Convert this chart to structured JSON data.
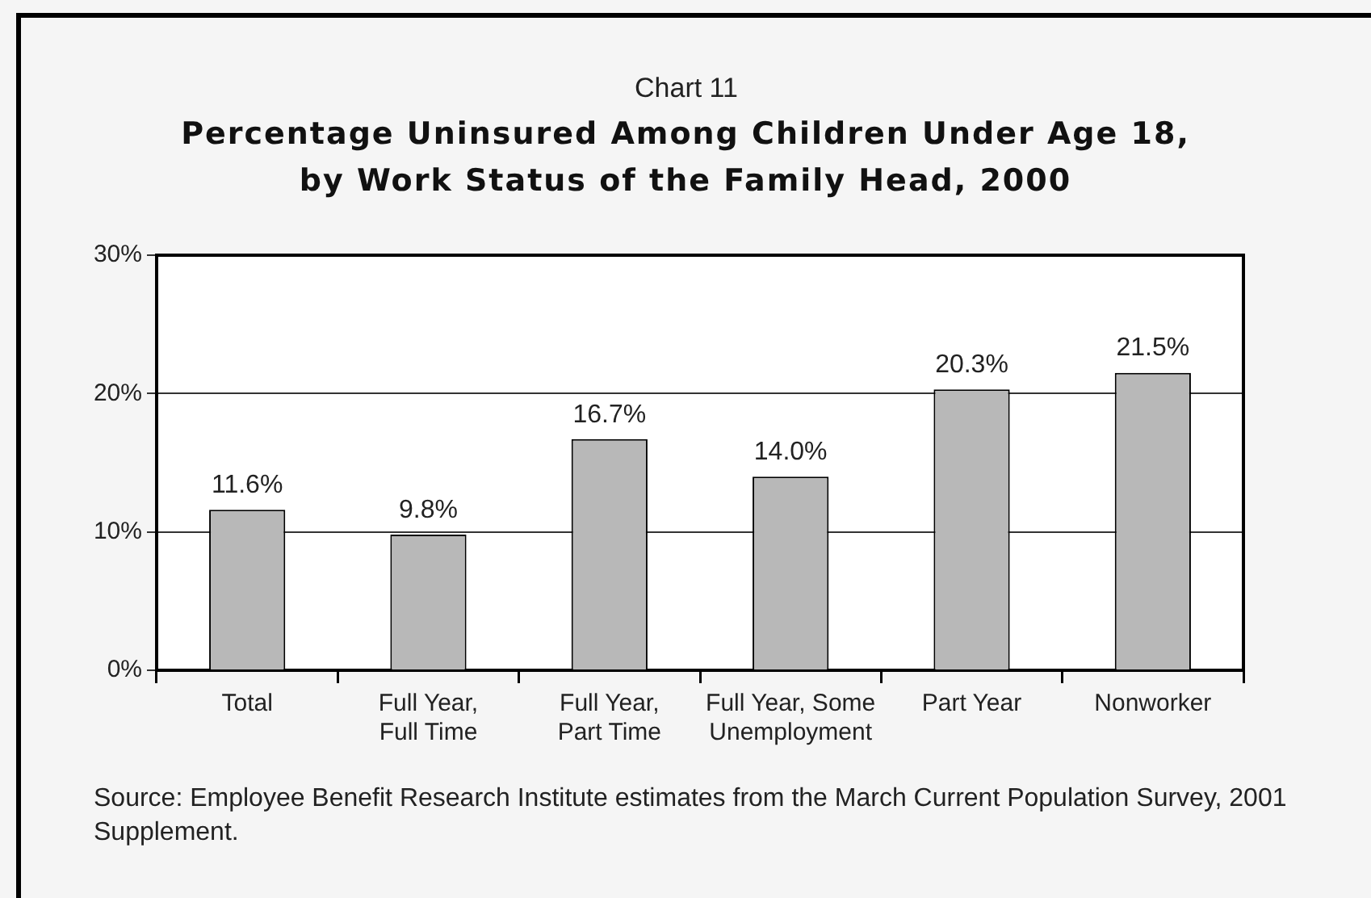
{
  "chart_data": {
    "type": "bar",
    "title": "Chart 11",
    "subtitle": "Percentage Uninsured Among Children Under Age 18, by Work Status of the Family Head, 2000",
    "categories": [
      "Total",
      "Full Year, Full Time",
      "Full Year, Part Time",
      "Full Year, Some Unemployment",
      "Part Year",
      "Nonworker"
    ],
    "values": [
      11.6,
      9.8,
      16.7,
      14.0,
      20.3,
      21.5
    ],
    "color": "#b8b8b8",
    "value_labels": [
      "11.6%",
      "9.8%",
      "16.7%",
      "14.0%",
      "20.3%",
      "21.5%"
    ],
    "ylim": [
      0,
      30
    ],
    "yticks": [
      {
        "value": 0,
        "label": "0%"
      },
      {
        "value": 10,
        "label": "10%"
      },
      {
        "value": 20,
        "label": "20%"
      },
      {
        "value": 30,
        "label": "30%"
      }
    ],
    "grid": "y",
    "legend": false,
    "annotations": [
      "Source: Employee Benefit Research Institute estimates from the March Current Population Survey, 2001 Supplement."
    ]
  }
}
